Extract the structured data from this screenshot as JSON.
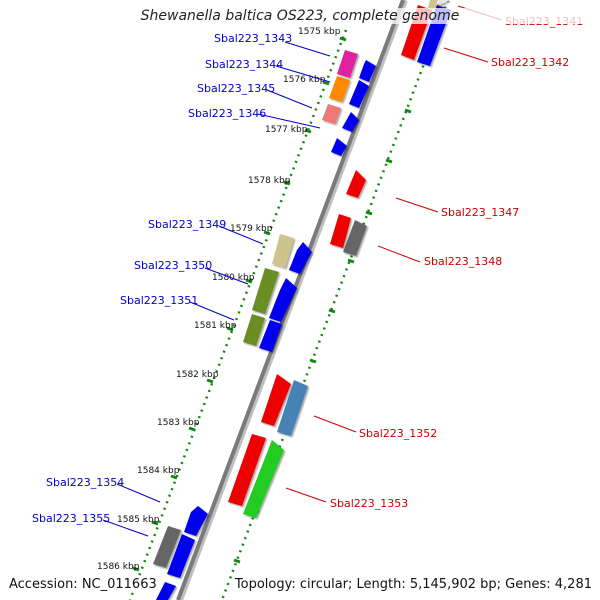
{
  "title": "Shewanella baltica OS223, complete genome",
  "accession": "Accession: NC_011663",
  "topology": "Topology: circular; Length: 5,145,902 bp; Genes: 4,281",
  "colors": {
    "label_left": "#0000cc",
    "label_right": "#cc0000",
    "tick": "#118811",
    "backbone": "#808080"
  },
  "ticks": [
    "1575 kbp",
    "1576 kbp",
    "1577 kbp",
    "1578 kbp",
    "1579 kbp",
    "1580 kbp",
    "1581 kbp",
    "1582 kbp",
    "1583 kbp",
    "1584 kbp",
    "1585 kbp",
    "1586 kbp"
  ],
  "labels_left": [
    "Sbal223_1343",
    "Sbal223_1344",
    "Sbal223_1345",
    "Sbal223_1346",
    "Sbal223_1349",
    "Sbal223_1350",
    "Sbal223_1351",
    "Sbal223_1354",
    "Sbal223_1355"
  ],
  "labels_right": [
    "Sbal223_1341",
    "Sbal223_1342",
    "Sbal223_1347",
    "Sbal223_1348",
    "Sbal223_1352",
    "Sbal223_1353"
  ]
}
